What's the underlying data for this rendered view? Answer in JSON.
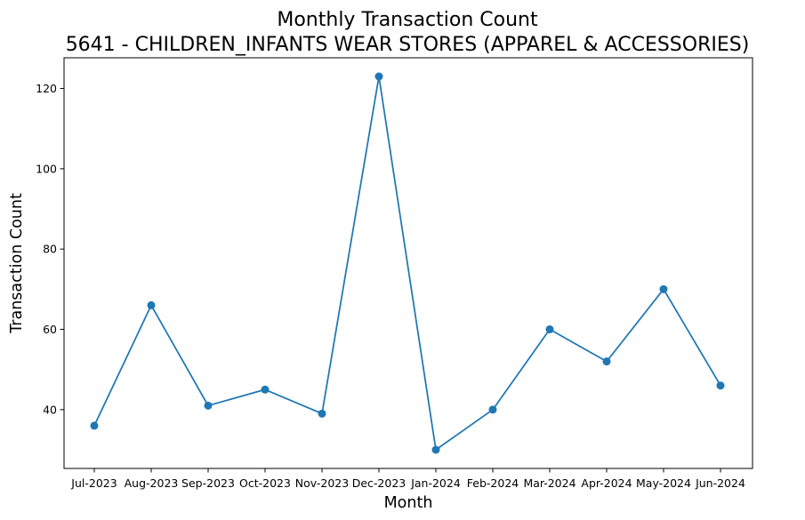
{
  "chart_data": {
    "type": "line",
    "title": "Monthly Transaction Count",
    "subtitle": "5641 - CHILDREN_INFANTS WEAR STORES (APPAREL & ACCESSORIES)",
    "xlabel": "Month",
    "ylabel": "Transaction Count",
    "categories": [
      "Jul-2023",
      "Aug-2023",
      "Sep-2023",
      "Oct-2023",
      "Nov-2023",
      "Dec-2023",
      "Jan-2024",
      "Feb-2024",
      "Mar-2024",
      "Apr-2024",
      "May-2024",
      "Jun-2024"
    ],
    "series": [
      {
        "values": [
          36,
          66,
          41,
          45,
          39,
          123,
          30,
          40,
          60,
          52,
          70,
          46
        ]
      }
    ],
    "yticks": [
      40,
      60,
      80,
      100,
      120
    ],
    "ylim": [
      25.35,
      127.65
    ],
    "grid": false,
    "colors": {
      "line": "#1f77b4",
      "marker": "#1f77b4",
      "axis": "#000000"
    }
  }
}
